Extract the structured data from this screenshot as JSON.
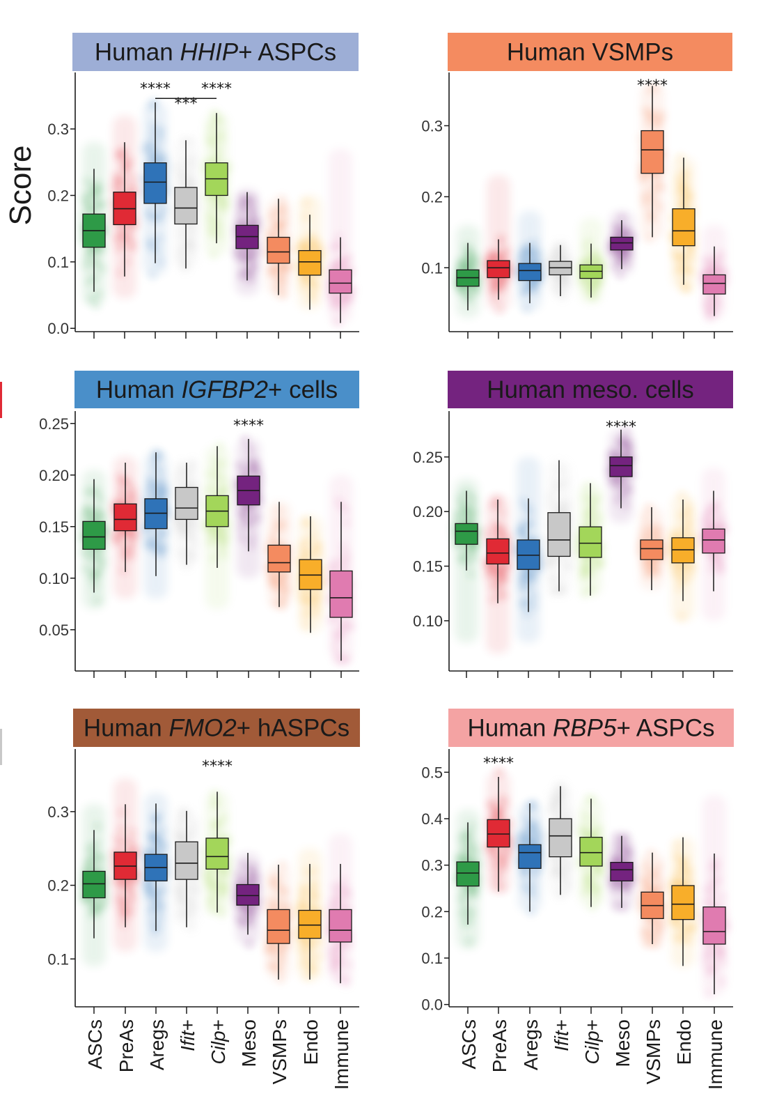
{
  "figure": {
    "ylabel": "Score",
    "category_colors": [
      "#2e9a47",
      "#e02a35",
      "#2f73b8",
      "#c8c8c8",
      "#a3d65a",
      "#74237f",
      "#f48b60",
      "#f8ae2a",
      "#e07bb0"
    ]
  },
  "chart_data": [
    {
      "type": "box",
      "title": "Human HHIP+ ASPCs",
      "title_parts": [
        {
          "text": "Human ",
          "italic": false
        },
        {
          "text": "HHIP",
          "italic": true
        },
        {
          "text": "+ ASPCs",
          "italic": false
        }
      ],
      "title_bg": "#9daed6",
      "title_color": "#1a1a1a",
      "ylabel": "Score",
      "ylim": [
        -0.005,
        0.385
      ],
      "yticks": [
        0.0,
        0.1,
        0.2,
        0.3
      ],
      "ytick_labels": [
        "0.0",
        "0.1",
        "0.2",
        "0.3"
      ],
      "categories": [
        "ASCs",
        "PreAs",
        "Aregs",
        "Ifit+",
        "Cilp+",
        "Meso",
        "VSMPs",
        "Endo",
        "Immune"
      ],
      "boxes": [
        {
          "whislo": 0.055,
          "q1": 0.122,
          "med": 0.147,
          "q3": 0.172,
          "whishi": 0.24,
          "lo_pts": 0.035,
          "hi_pts": 0.28
        },
        {
          "whislo": 0.078,
          "q1": 0.156,
          "med": 0.18,
          "q3": 0.205,
          "whishi": 0.28,
          "lo_pts": 0.045,
          "hi_pts": 0.32
        },
        {
          "whislo": 0.098,
          "q1": 0.188,
          "med": 0.22,
          "q3": 0.249,
          "whishi": 0.34,
          "lo_pts": 0.08,
          "hi_pts": 0.34
        },
        {
          "whislo": 0.09,
          "q1": 0.157,
          "med": 0.181,
          "q3": 0.212,
          "whishi": 0.283,
          "lo_pts": 0.09,
          "hi_pts": 0.283
        },
        {
          "whislo": 0.128,
          "q1": 0.2,
          "med": 0.225,
          "q3": 0.249,
          "whishi": 0.324,
          "lo_pts": 0.11,
          "hi_pts": 0.324
        },
        {
          "whislo": 0.072,
          "q1": 0.12,
          "med": 0.138,
          "q3": 0.155,
          "whishi": 0.205,
          "lo_pts": 0.05,
          "hi_pts": 0.21
        },
        {
          "whislo": 0.05,
          "q1": 0.098,
          "med": 0.115,
          "q3": 0.137,
          "whishi": 0.195,
          "lo_pts": 0.05,
          "hi_pts": 0.195
        },
        {
          "whislo": 0.028,
          "q1": 0.08,
          "med": 0.1,
          "q3": 0.117,
          "whishi": 0.171,
          "lo_pts": 0.028,
          "hi_pts": 0.2
        },
        {
          "whislo": 0.008,
          "q1": 0.053,
          "med": 0.068,
          "q3": 0.088,
          "whishi": 0.137,
          "lo_pts": 0.008,
          "hi_pts": 0.27
        }
      ],
      "annotations": [
        {
          "text": "****",
          "x_index": 2,
          "y": 0.37
        },
        {
          "text": "****",
          "x_index": 4,
          "y": 0.37
        },
        {
          "text": "***",
          "x_index": 3,
          "y": 0.347,
          "bracket": [
            2,
            4
          ],
          "bracket_y": 0.346
        }
      ]
    },
    {
      "type": "box",
      "title": "Human VSMPs",
      "title_parts": [
        {
          "text": "Human VSMPs",
          "italic": false
        }
      ],
      "title_bg": "#f48b60",
      "title_color": "#1a1a1a",
      "ylim": [
        0.01,
        0.375
      ],
      "yticks": [
        0.1,
        0.2,
        0.3
      ],
      "ytick_labels": [
        "0.1",
        "0.2",
        "0.3"
      ],
      "categories": [
        "ASCs",
        "PreAs",
        "Aregs",
        "Ifit+",
        "Cilp+",
        "Meso",
        "VSMPs",
        "Endo",
        "Immune"
      ],
      "boxes": [
        {
          "whislo": 0.04,
          "q1": 0.074,
          "med": 0.086,
          "q3": 0.097,
          "whishi": 0.135,
          "lo_pts": 0.03,
          "hi_pts": 0.16
        },
        {
          "whislo": 0.055,
          "q1": 0.086,
          "med": 0.1,
          "q3": 0.11,
          "whishi": 0.14,
          "lo_pts": 0.04,
          "hi_pts": 0.23
        },
        {
          "whislo": 0.05,
          "q1": 0.082,
          "med": 0.096,
          "q3": 0.106,
          "whishi": 0.135,
          "lo_pts": 0.04,
          "hi_pts": 0.18
        },
        {
          "whislo": 0.06,
          "q1": 0.09,
          "med": 0.1,
          "q3": 0.109,
          "whishi": 0.132,
          "lo_pts": 0.06,
          "hi_pts": 0.132
        },
        {
          "whislo": 0.058,
          "q1": 0.085,
          "med": 0.095,
          "q3": 0.104,
          "whishi": 0.134,
          "lo_pts": 0.05,
          "hi_pts": 0.17
        },
        {
          "whislo": 0.098,
          "q1": 0.125,
          "med": 0.135,
          "q3": 0.143,
          "whishi": 0.167,
          "lo_pts": 0.09,
          "hi_pts": 0.18
        },
        {
          "whislo": 0.143,
          "q1": 0.233,
          "med": 0.266,
          "q3": 0.293,
          "whishi": 0.356,
          "lo_pts": 0.14,
          "hi_pts": 0.36
        },
        {
          "whislo": 0.076,
          "q1": 0.131,
          "med": 0.152,
          "q3": 0.183,
          "whishi": 0.255,
          "lo_pts": 0.07,
          "hi_pts": 0.255
        },
        {
          "whislo": 0.032,
          "q1": 0.063,
          "med": 0.078,
          "q3": 0.09,
          "whishi": 0.13,
          "lo_pts": 0.03,
          "hi_pts": 0.16
        }
      ],
      "annotations": [
        {
          "text": "****",
          "x_index": 6,
          "y": 0.365
        }
      ]
    },
    {
      "type": "box",
      "title": "Human IGFBP2+ cells",
      "title_parts": [
        {
          "text": "Human ",
          "italic": false
        },
        {
          "text": "IGFBP2",
          "italic": true
        },
        {
          "text": "+ cells",
          "italic": false
        }
      ],
      "title_bg": "#4a8fc9",
      "title_color": "#1a1a1a",
      "ylim": [
        0.01,
        0.262
      ],
      "yticks": [
        0.05,
        0.1,
        0.15,
        0.2,
        0.25
      ],
      "ytick_labels": [
        "0.05",
        "0.10",
        "0.15",
        "0.20",
        "0.25"
      ],
      "categories": [
        "ASCs",
        "PreAs",
        "Aregs",
        "Ifit+",
        "Cilp+",
        "Meso",
        "VSMPs",
        "Endo",
        "Immune"
      ],
      "boxes": [
        {
          "whislo": 0.086,
          "q1": 0.128,
          "med": 0.14,
          "q3": 0.155,
          "whishi": 0.196,
          "lo_pts": 0.07,
          "hi_pts": 0.205
        },
        {
          "whislo": 0.106,
          "q1": 0.146,
          "med": 0.157,
          "q3": 0.172,
          "whishi": 0.212,
          "lo_pts": 0.08,
          "hi_pts": 0.218
        },
        {
          "whislo": 0.102,
          "q1": 0.148,
          "med": 0.163,
          "q3": 0.177,
          "whishi": 0.222,
          "lo_pts": 0.08,
          "hi_pts": 0.222
        },
        {
          "whislo": 0.113,
          "q1": 0.157,
          "med": 0.168,
          "q3": 0.188,
          "whishi": 0.212,
          "lo_pts": 0.113,
          "hi_pts": 0.212
        },
        {
          "whislo": 0.11,
          "q1": 0.15,
          "med": 0.165,
          "q3": 0.18,
          "whishi": 0.228,
          "lo_pts": 0.07,
          "hi_pts": 0.228
        },
        {
          "whislo": 0.126,
          "q1": 0.171,
          "med": 0.185,
          "q3": 0.199,
          "whishi": 0.235,
          "lo_pts": 0.1,
          "hi_pts": 0.235
        },
        {
          "whislo": 0.072,
          "q1": 0.106,
          "med": 0.115,
          "q3": 0.132,
          "whishi": 0.174,
          "lo_pts": 0.072,
          "hi_pts": 0.174
        },
        {
          "whislo": 0.047,
          "q1": 0.089,
          "med": 0.103,
          "q3": 0.118,
          "whishi": 0.16,
          "lo_pts": 0.047,
          "hi_pts": 0.16
        },
        {
          "whislo": 0.02,
          "q1": 0.062,
          "med": 0.081,
          "q3": 0.107,
          "whishi": 0.174,
          "lo_pts": 0.02,
          "hi_pts": 0.2
        }
      ],
      "annotations": [
        {
          "text": "****",
          "x_index": 5,
          "y": 0.254
        }
      ]
    },
    {
      "type": "box",
      "title": "Human meso. cells",
      "title_parts": [
        {
          "text": "Human meso. cells",
          "italic": false
        }
      ],
      "title_bg": "#74237f",
      "title_color": "#1a1a1a",
      "ylim": [
        0.054,
        0.292
      ],
      "yticks": [
        0.1,
        0.15,
        0.2,
        0.25
      ],
      "ytick_labels": [
        "0.10",
        "0.15",
        "0.20",
        "0.25"
      ],
      "categories": [
        "ASCs",
        "PreAs",
        "Aregs",
        "Ifit+",
        "Cilp+",
        "Meso",
        "VSMPs",
        "Endo",
        "Immune"
      ],
      "boxes": [
        {
          "whislo": 0.146,
          "q1": 0.17,
          "med": 0.182,
          "q3": 0.189,
          "whishi": 0.219,
          "lo_pts": 0.08,
          "hi_pts": 0.23
        },
        {
          "whislo": 0.116,
          "q1": 0.152,
          "med": 0.162,
          "q3": 0.175,
          "whishi": 0.211,
          "lo_pts": 0.07,
          "hi_pts": 0.215
        },
        {
          "whislo": 0.108,
          "q1": 0.147,
          "med": 0.16,
          "q3": 0.174,
          "whishi": 0.212,
          "lo_pts": 0.08,
          "hi_pts": 0.25
        },
        {
          "whislo": 0.127,
          "q1": 0.159,
          "med": 0.174,
          "q3": 0.199,
          "whishi": 0.247,
          "lo_pts": 0.127,
          "hi_pts": 0.247
        },
        {
          "whislo": 0.123,
          "q1": 0.158,
          "med": 0.171,
          "q3": 0.186,
          "whishi": 0.226,
          "lo_pts": 0.123,
          "hi_pts": 0.226
        },
        {
          "whislo": 0.203,
          "q1": 0.232,
          "med": 0.242,
          "q3": 0.25,
          "whishi": 0.275,
          "lo_pts": 0.19,
          "hi_pts": 0.275
        },
        {
          "whislo": 0.128,
          "q1": 0.156,
          "med": 0.166,
          "q3": 0.174,
          "whishi": 0.204,
          "lo_pts": 0.128,
          "hi_pts": 0.204
        },
        {
          "whislo": 0.118,
          "q1": 0.153,
          "med": 0.165,
          "q3": 0.176,
          "whishi": 0.211,
          "lo_pts": 0.1,
          "hi_pts": 0.215
        },
        {
          "whislo": 0.127,
          "q1": 0.162,
          "med": 0.174,
          "q3": 0.184,
          "whishi": 0.219,
          "lo_pts": 0.1,
          "hi_pts": 0.24
        }
      ],
      "annotations": [
        {
          "text": "****",
          "x_index": 5,
          "y": 0.283
        }
      ]
    },
    {
      "type": "box",
      "title": "Human FMO2+ hASPCs",
      "title_parts": [
        {
          "text": "Human ",
          "italic": false
        },
        {
          "text": "FMO2",
          "italic": true
        },
        {
          "text": "+ hASPCs",
          "italic": false
        }
      ],
      "title_bg": "#a15a38",
      "title_color": "#1a1a1a",
      "ylim": [
        0.035,
        0.385
      ],
      "yticks": [
        0.1,
        0.2,
        0.3
      ],
      "ytick_labels": [
        "0.1",
        "0.2",
        "0.3"
      ],
      "categories": [
        "ASCs",
        "PreAs",
        "Aregs",
        "Ifit+",
        "Cilp+",
        "Meso",
        "VSMPs",
        "Endo",
        "Immune"
      ],
      "boxes": [
        {
          "whislo": 0.128,
          "q1": 0.183,
          "med": 0.202,
          "q3": 0.219,
          "whishi": 0.275,
          "lo_pts": 0.09,
          "hi_pts": 0.31
        },
        {
          "whislo": 0.143,
          "q1": 0.208,
          "med": 0.226,
          "q3": 0.245,
          "whishi": 0.31,
          "lo_pts": 0.11,
          "hi_pts": 0.345
        },
        {
          "whislo": 0.138,
          "q1": 0.206,
          "med": 0.224,
          "q3": 0.242,
          "whishi": 0.311,
          "lo_pts": 0.11,
          "hi_pts": 0.325
        },
        {
          "whislo": 0.143,
          "q1": 0.208,
          "med": 0.23,
          "q3": 0.259,
          "whishi": 0.301,
          "lo_pts": 0.143,
          "hi_pts": 0.301
        },
        {
          "whislo": 0.163,
          "q1": 0.222,
          "med": 0.239,
          "q3": 0.264,
          "whishi": 0.327,
          "lo_pts": 0.16,
          "hi_pts": 0.327
        },
        {
          "whislo": 0.133,
          "q1": 0.173,
          "med": 0.186,
          "q3": 0.201,
          "whishi": 0.244,
          "lo_pts": 0.12,
          "hi_pts": 0.244
        },
        {
          "whislo": 0.072,
          "q1": 0.121,
          "med": 0.139,
          "q3": 0.167,
          "whishi": 0.228,
          "lo_pts": 0.072,
          "hi_pts": 0.228
        },
        {
          "whislo": 0.072,
          "q1": 0.128,
          "med": 0.146,
          "q3": 0.166,
          "whishi": 0.229,
          "lo_pts": 0.07,
          "hi_pts": 0.25
        },
        {
          "whislo": 0.067,
          "q1": 0.123,
          "med": 0.139,
          "q3": 0.167,
          "whishi": 0.229,
          "lo_pts": 0.067,
          "hi_pts": 0.27
        }
      ],
      "annotations": [
        {
          "text": "****",
          "x_index": 4,
          "y": 0.37
        }
      ]
    },
    {
      "type": "box",
      "title": "Human RBP5+ ASPCs",
      "title_parts": [
        {
          "text": "Human ",
          "italic": false
        },
        {
          "text": "RBP5",
          "italic": true
        },
        {
          "text": "+ ASPCs",
          "italic": false
        }
      ],
      "title_bg": "#f4a3a3",
      "title_color": "#1a1a1a",
      "ylim": [
        -0.005,
        0.55
      ],
      "yticks": [
        0.0,
        0.1,
        0.2,
        0.3,
        0.4,
        0.5
      ],
      "ytick_labels": [
        "0.0",
        "0.1",
        "0.2",
        "0.3",
        "0.4",
        "0.5"
      ],
      "categories": [
        "ASCs",
        "PreAs",
        "Aregs",
        "Ifit+",
        "Cilp+",
        "Meso",
        "VSMPs",
        "Endo",
        "Immune"
      ],
      "boxes": [
        {
          "whislo": 0.172,
          "q1": 0.255,
          "med": 0.283,
          "q3": 0.307,
          "whishi": 0.392,
          "lo_pts": 0.12,
          "hi_pts": 0.42
        },
        {
          "whislo": 0.243,
          "q1": 0.339,
          "med": 0.367,
          "q3": 0.398,
          "whishi": 0.49,
          "lo_pts": 0.24,
          "hi_pts": 0.5
        },
        {
          "whislo": 0.2,
          "q1": 0.293,
          "med": 0.327,
          "q3": 0.344,
          "whishi": 0.433,
          "lo_pts": 0.2,
          "hi_pts": 0.433
        },
        {
          "whislo": 0.236,
          "q1": 0.318,
          "med": 0.363,
          "q3": 0.4,
          "whishi": 0.47,
          "lo_pts": 0.236,
          "hi_pts": 0.47
        },
        {
          "whislo": 0.21,
          "q1": 0.298,
          "med": 0.327,
          "q3": 0.36,
          "whishi": 0.443,
          "lo_pts": 0.21,
          "hi_pts": 0.443
        },
        {
          "whislo": 0.208,
          "q1": 0.266,
          "med": 0.29,
          "q3": 0.306,
          "whishi": 0.363,
          "lo_pts": 0.2,
          "hi_pts": 0.363
        },
        {
          "whislo": 0.13,
          "q1": 0.185,
          "med": 0.213,
          "q3": 0.242,
          "whishi": 0.327,
          "lo_pts": 0.13,
          "hi_pts": 0.327
        },
        {
          "whislo": 0.083,
          "q1": 0.183,
          "med": 0.216,
          "q3": 0.256,
          "whishi": 0.36,
          "lo_pts": 0.08,
          "hi_pts": 0.36
        },
        {
          "whislo": 0.022,
          "q1": 0.13,
          "med": 0.157,
          "q3": 0.21,
          "whishi": 0.325,
          "lo_pts": 0.02,
          "hi_pts": 0.45
        }
      ],
      "annotations": [
        {
          "text": "****",
          "x_index": 1,
          "y": 0.533
        }
      ]
    }
  ]
}
